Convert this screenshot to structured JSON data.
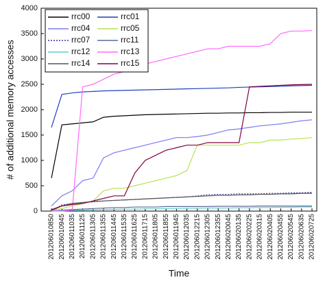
{
  "chart_data": {
    "type": "line",
    "x_label": "Time",
    "y_label": "# of additional memory accesses",
    "categories": [
      "201206010850",
      "201206010945",
      "201206011035",
      "201206011125",
      "201206011305",
      "201206011355",
      "201206011445",
      "201206011535",
      "201206011625",
      "201206011715",
      "201206011805",
      "201206011855",
      "201206011945",
      "201206012035",
      "201206012215",
      "201206012305",
      "201206012355",
      "201206020045",
      "201206020135",
      "201206020225",
      "201206020315",
      "201206020405",
      "201206020455",
      "201206020545",
      "201206020635",
      "201206020725"
    ],
    "ylim": [
      0,
      4000
    ],
    "yticks": [
      0,
      500,
      1000,
      1500,
      2000,
      2500,
      3000,
      3500,
      4000
    ],
    "legend": "upper left",
    "series": [
      {
        "name": "rrc00",
        "color": "#000000",
        "values": [
          650,
          1700,
          1720,
          1740,
          1760,
          1850,
          1870,
          1880,
          1890,
          1900,
          1905,
          1910,
          1915,
          1920,
          1925,
          1930,
          1930,
          1935,
          1935,
          1940,
          1940,
          1945,
          1945,
          1950,
          1950,
          1950
        ]
      },
      {
        "name": "rrc01",
        "color": "#1f3fbf",
        "values": [
          1650,
          2300,
          2330,
          2350,
          2360,
          2370,
          2375,
          2380,
          2385,
          2390,
          2395,
          2400,
          2405,
          2410,
          2415,
          2420,
          2425,
          2430,
          2440,
          2445,
          2450,
          2455,
          2460,
          2470,
          2475,
          2480
        ]
      },
      {
        "name": "rrc04",
        "color": "#7b7bf0",
        "values": [
          100,
          300,
          400,
          600,
          650,
          1050,
          1150,
          1200,
          1250,
          1300,
          1350,
          1400,
          1450,
          1450,
          1470,
          1500,
          1550,
          1600,
          1620,
          1650,
          1680,
          1700,
          1720,
          1750,
          1780,
          1800
        ]
      },
      {
        "name": "rrc05",
        "color": "#b5e34f",
        "values": [
          20,
          50,
          100,
          150,
          200,
          400,
          450,
          450,
          500,
          550,
          600,
          650,
          700,
          800,
          1300,
          1300,
          1300,
          1300,
          1300,
          1350,
          1350,
          1400,
          1400,
          1420,
          1430,
          1450
        ]
      },
      {
        "name": "rrc07",
        "color": "#333399",
        "dashed": true,
        "values": [
          10,
          120,
          150,
          170,
          180,
          200,
          210,
          220,
          230,
          240,
          250,
          260,
          270,
          280,
          300,
          320,
          330,
          330,
          340,
          340,
          340,
          350,
          350,
          360,
          360,
          370
        ]
      },
      {
        "name": "rrc11",
        "color": "#556b99",
        "values": [
          5,
          20,
          30,
          40,
          50,
          60,
          70,
          70,
          80,
          80,
          80,
          90,
          90,
          90,
          90,
          90,
          95,
          95,
          95,
          95,
          100,
          100,
          100,
          100,
          100,
          100
        ]
      },
      {
        "name": "rrc12",
        "color": "#66cccc",
        "values": [
          5,
          10,
          15,
          20,
          25,
          30,
          35,
          40,
          40,
          45,
          45,
          50,
          50,
          55,
          55,
          60,
          60,
          60,
          65,
          65,
          70,
          70,
          75,
          75,
          80,
          80
        ]
      },
      {
        "name": "rrc13",
        "color": "#ff66ff",
        "values": [
          0,
          0,
          20,
          2450,
          2500,
          2600,
          2700,
          2750,
          2800,
          2900,
          2950,
          3000,
          3050,
          3100,
          3150,
          3200,
          3200,
          3250,
          3250,
          3250,
          3250,
          3300,
          3500,
          3550,
          3550,
          3560
        ]
      },
      {
        "name": "rrc14",
        "color": "#555555",
        "values": [
          10,
          100,
          150,
          170,
          190,
          200,
          210,
          220,
          230,
          240,
          250,
          260,
          270,
          280,
          290,
          300,
          310,
          310,
          320,
          320,
          330,
          330,
          340,
          340,
          350,
          350
        ]
      },
      {
        "name": "rrc15",
        "color": "#800040",
        "values": [
          30,
          100,
          130,
          150,
          200,
          250,
          300,
          300,
          750,
          1000,
          1100,
          1200,
          1250,
          1300,
          1300,
          1350,
          1350,
          1350,
          1350,
          2450,
          2460,
          2470,
          2480,
          2490,
          2495,
          2500
        ]
      }
    ]
  }
}
